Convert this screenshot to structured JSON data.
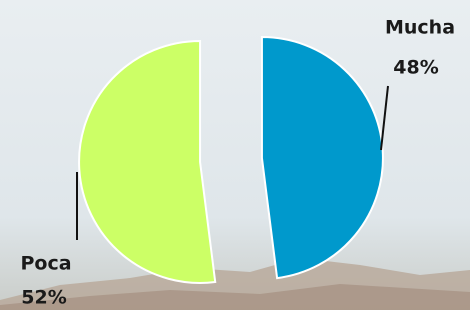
{
  "chart_data": {
    "type": "pie",
    "categories": [
      "Mucha",
      "Poca"
    ],
    "values": [
      48,
      52
    ],
    "value_labels": [
      "48%",
      "52%"
    ],
    "colors": [
      "#0099cc",
      "#ccff66"
    ]
  }
}
